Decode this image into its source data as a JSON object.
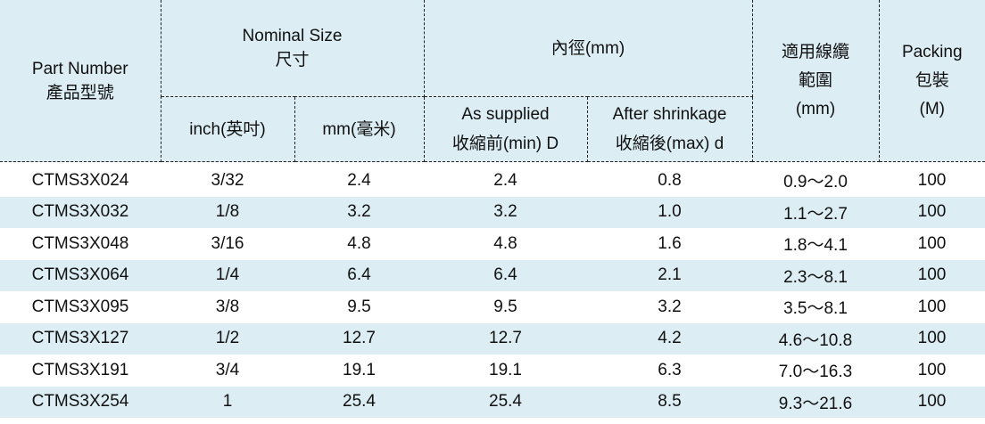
{
  "table": {
    "header": {
      "part_number": [
        "Part Number",
        "產品型號"
      ],
      "nominal_size": [
        "Nominal Size",
        "尺寸"
      ],
      "inch": "inch(英吋)",
      "mm": "mm(毫米)",
      "inner_diameter": "內徑(mm)",
      "as_supplied": [
        "As supplied",
        "收縮前(min) D"
      ],
      "after_shrinkage": [
        "After shrinkage",
        "收縮後(max) d"
      ],
      "cable_range": [
        "適用線纜",
        "範圍",
        "(mm)"
      ],
      "packing": [
        "Packing",
        "包裝",
        "(M)"
      ]
    },
    "rows": [
      [
        "CTMS3X024",
        "3/32",
        "2.4",
        "2.4",
        "0.8",
        "0.9～2.0",
        "100"
      ],
      [
        "CTMS3X032",
        "1/8",
        "3.2",
        "3.2",
        "1.0",
        "1.1～2.7",
        "100"
      ],
      [
        "CTMS3X048",
        "3/16",
        "4.8",
        "4.8",
        "1.6",
        "1.8～4.1",
        "100"
      ],
      [
        "CTMS3X064",
        "1/4",
        "6.4",
        "6.4",
        "2.1",
        "2.3～8.1",
        "100"
      ],
      [
        "CTMS3X095",
        "3/8",
        "9.5",
        "9.5",
        "3.2",
        "3.5～8.1",
        "100"
      ],
      [
        "CTMS3X127",
        "1/2",
        "12.7",
        "12.7",
        "4.2",
        "4.6～10.8",
        "100"
      ],
      [
        "CTMS3X191",
        "3/4",
        "19.1",
        "19.1",
        "6.3",
        "7.0～16.3",
        "100"
      ],
      [
        "CTMS3X254",
        "1",
        "25.4",
        "25.4",
        "8.5",
        "9.3～21.6",
        "100"
      ]
    ]
  }
}
